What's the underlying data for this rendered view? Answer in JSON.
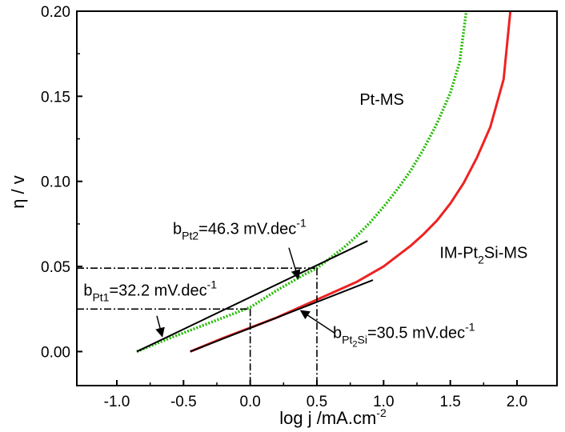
{
  "chart_data": {
    "type": "line",
    "xlabel": "log j /mA.cm",
    "xlabel_sup": "-2",
    "ylabel": "η / v",
    "xlim": [
      -1.3,
      2.3
    ],
    "ylim": [
      -0.02,
      0.2
    ],
    "x_ticks": [
      -1.0,
      -0.5,
      0.0,
      0.5,
      1.0,
      1.5,
      2.0
    ],
    "x_tick_labels": [
      "-1.0",
      "-0.5",
      "0.0",
      "0.5",
      "1.0",
      "1.5",
      "2.0"
    ],
    "y_ticks": [
      0.0,
      0.05,
      0.1,
      0.15,
      0.2
    ],
    "y_tick_labels": [
      "0.00",
      "0.05",
      "0.10",
      "0.15",
      "0.20"
    ],
    "grid": false,
    "series": [
      {
        "name": "Pt-MS",
        "color": "#22bb00",
        "style": "dotted",
        "x": [
          -0.85,
          -0.6,
          -0.4,
          -0.2,
          0.0,
          0.2,
          0.4,
          0.5,
          0.6,
          0.7,
          0.8,
          0.9,
          1.0,
          1.1,
          1.2,
          1.3,
          1.4,
          1.5,
          1.57,
          1.62
        ],
        "values": [
          0.0,
          0.008,
          0.014,
          0.02,
          0.026,
          0.036,
          0.045,
          0.049,
          0.055,
          0.061,
          0.068,
          0.076,
          0.085,
          0.095,
          0.106,
          0.119,
          0.134,
          0.152,
          0.17,
          0.2
        ]
      },
      {
        "name": "IM-Pt2Si-MS",
        "color": "#ee2222",
        "style": "solid",
        "x": [
          -0.45,
          -0.2,
          0.0,
          0.2,
          0.4,
          0.6,
          0.8,
          1.0,
          1.1,
          1.2,
          1.3,
          1.4,
          1.5,
          1.6,
          1.7,
          1.8,
          1.9,
          1.95
        ],
        "values": [
          0.0,
          0.008,
          0.014,
          0.02,
          0.027,
          0.034,
          0.041,
          0.05,
          0.056,
          0.062,
          0.069,
          0.077,
          0.087,
          0.099,
          0.114,
          0.132,
          0.16,
          0.2
        ]
      }
    ],
    "fit_lines": [
      {
        "color": "#000000",
        "x": [
          -0.85,
          0.88
        ],
        "values": [
          0.0,
          0.065
        ]
      },
      {
        "color": "#000000",
        "x": [
          -0.45,
          0.92
        ],
        "values": [
          0.0,
          0.042
        ]
      }
    ],
    "guide_lines": [
      {
        "x": [
          -1.3,
          0.5
        ],
        "values": [
          0.049,
          0.049
        ]
      },
      {
        "x": [
          0.5,
          0.5
        ],
        "values": [
          0.049,
          -0.02
        ]
      },
      {
        "x": [
          -1.3,
          0.0
        ],
        "values": [
          0.025,
          0.025
        ]
      },
      {
        "x": [
          0.0,
          0.0
        ],
        "values": [
          0.025,
          -0.02
        ]
      }
    ],
    "annotations": [
      {
        "id": "pt-ms",
        "text": "Pt-MS",
        "x": 0.82,
        "y": 0.145
      },
      {
        "id": "im",
        "base": "IM-Pt",
        "sub": "2",
        "rest": "Si-MS",
        "x": 1.42,
        "y": 0.055
      },
      {
        "id": "bpt2",
        "base": "b",
        "sub": "Pt2",
        "rest": "=46.3 mV.dec",
        "sup": "-1",
        "x": -0.58,
        "y": 0.069
      },
      {
        "id": "bpt1",
        "base": "b",
        "sub": "Pt1",
        "rest": "=32.2 mV.dec",
        "sup": "-1",
        "x": -1.25,
        "y": 0.033
      },
      {
        "id": "bpt2si",
        "base": "b",
        "sub": "Pt",
        "subsub": "2",
        "subrest": "Si",
        "rest": "=30.5 mV.dec",
        "sup": "-1",
        "x": 0.62,
        "y": 0.008
      }
    ],
    "arrows": [
      {
        "from": [
          0.29,
          0.061
        ],
        "to": [
          0.36,
          0.043
        ]
      },
      {
        "from": [
          -0.7,
          0.021
        ],
        "to": [
          -0.66,
          0.009
        ]
      },
      {
        "from": [
          0.63,
          0.011
        ],
        "to": [
          0.38,
          0.024
        ]
      }
    ]
  }
}
